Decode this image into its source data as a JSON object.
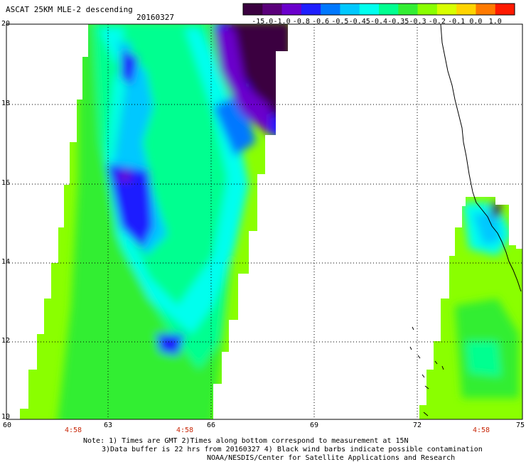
{
  "header": {
    "title": "ASCAT 25KM MLE-2 descending",
    "date": "20160327"
  },
  "colorbar": {
    "labels": [
      "-15.0",
      "-1.0",
      "-0.8",
      "-0.6",
      "-0.5",
      "-0.45",
      "-0.4",
      "-0.35",
      "-0.3",
      "-0.2",
      "-0.1",
      "0.0",
      "1.0"
    ],
    "colors": [
      "#3a003f",
      "#5a007a",
      "#6a00cc",
      "#1f1fff",
      "#0078ff",
      "#00c8ff",
      "#00ffee",
      "#00ff90",
      "#33ee33",
      "#8aff00",
      "#d8ff00",
      "#ffd400",
      "#ff7a00",
      "#ff1a00"
    ]
  },
  "axes": {
    "x_ticks": [
      "60",
      "63",
      "66",
      "69",
      "72",
      "75"
    ],
    "y_ticks": [
      "20",
      "18",
      "16",
      "14",
      "12",
      "10"
    ],
    "time_labels": [
      "4:58",
      "4:58",
      "4:58"
    ]
  },
  "notes": {
    "line1": "Note: 1) Times are GMT 2)Times along bottom correspond to measurement at 15N",
    "line2": "3)Data buffer is 22 hrs from 20160327 4) Black wind barbs indicate possible contamination",
    "line3": "NOAA/NESDIS/Center for Satellite Applications and Research"
  }
}
